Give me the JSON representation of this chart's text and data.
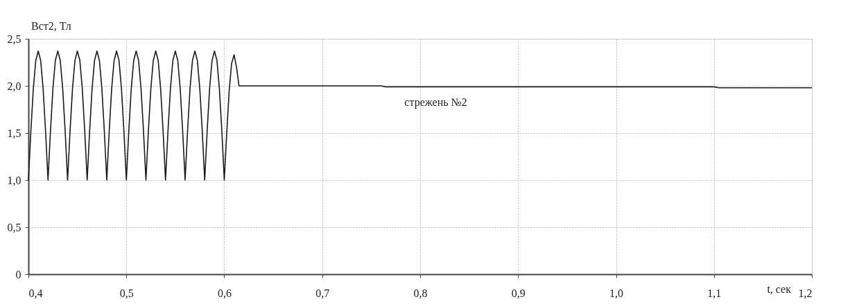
{
  "chart_data": {
    "type": "line",
    "xlabel": "t, сек",
    "ylabel": "Bст2, Тл",
    "annotations": [
      "стрежень №2"
    ],
    "xlim": [
      0.4,
      1.2
    ],
    "xticks": [
      {
        "value": 0.4,
        "label": "0,4"
      },
      {
        "value": 0.5,
        "label": "0,5"
      },
      {
        "value": 0.6,
        "label": "0,6"
      },
      {
        "value": 0.7,
        "label": "0,7"
      },
      {
        "value": 0.8,
        "label": "0,8"
      },
      {
        "value": 0.9,
        "label": "0,9"
      },
      {
        "value": 1.0,
        "label": "1,0"
      },
      {
        "value": 1.1,
        "label": "1,1"
      },
      {
        "value": 1.2,
        "label": "1,2"
      }
    ],
    "ylim": [
      0,
      2.5
    ],
    "yticks": [
      0,
      {
        "value": 0.5,
        "label": "0,5"
      },
      {
        "value": 1.0,
        "label": "1,0"
      },
      {
        "value": 1.5,
        "label": "1,5"
      },
      {
        "value": 2.0,
        "label": "2,0"
      },
      {
        "value": 2.5,
        "label": "2,5"
      }
    ],
    "grid": true,
    "marker": "none",
    "line_style": "solid",
    "series": [
      {
        "color": "#1a1a1a",
        "x": [
          0.4,
          0.4025,
          0.405,
          0.4075,
          0.41,
          0.4125,
          0.415,
          0.4175,
          0.42,
          0.4225,
          0.425,
          0.4275,
          0.43,
          0.4325,
          0.435,
          0.4375,
          0.44,
          0.4425,
          0.445,
          0.4475,
          0.45,
          0.4525,
          0.455,
          0.4575,
          0.46,
          0.4625,
          0.465,
          0.4675,
          0.47,
          0.4725,
          0.475,
          0.4775,
          0.48,
          0.4825,
          0.485,
          0.4875,
          0.49,
          0.4925,
          0.495,
          0.4975,
          0.5,
          0.5025,
          0.505,
          0.5075,
          0.51,
          0.5125,
          0.515,
          0.5175,
          0.52,
          0.5225,
          0.525,
          0.5275,
          0.53,
          0.5325,
          0.535,
          0.5375,
          0.54,
          0.5425,
          0.545,
          0.5475,
          0.55,
          0.5525,
          0.555,
          0.5575,
          0.56,
          0.5625,
          0.565,
          0.5675,
          0.57,
          0.5725,
          0.575,
          0.5775,
          0.58,
          0.5825,
          0.585,
          0.5875,
          0.59,
          0.5925,
          0.595,
          0.5975,
          0.6,
          0.6025,
          0.605,
          0.6075,
          0.61,
          0.6125,
          0.615,
          0.76,
          0.765,
          1.1,
          1.105,
          1.2
        ],
        "values": [
          1.0,
          1.52,
          1.97,
          2.27,
          2.37,
          2.27,
          1.97,
          1.52,
          1.0,
          1.52,
          1.97,
          2.27,
          2.37,
          2.27,
          1.97,
          1.52,
          1.0,
          1.52,
          1.97,
          2.27,
          2.37,
          2.27,
          1.97,
          1.52,
          1.0,
          1.52,
          1.97,
          2.27,
          2.37,
          2.27,
          1.97,
          1.52,
          1.0,
          1.52,
          1.97,
          2.27,
          2.37,
          2.27,
          1.97,
          1.52,
          1.0,
          1.52,
          1.97,
          2.27,
          2.37,
          2.27,
          1.97,
          1.52,
          1.0,
          1.52,
          1.97,
          2.27,
          2.37,
          2.27,
          1.97,
          1.52,
          1.0,
          1.52,
          1.97,
          2.27,
          2.37,
          2.27,
          1.97,
          1.52,
          1.0,
          1.52,
          1.97,
          2.27,
          2.37,
          2.27,
          1.97,
          1.52,
          1.0,
          1.52,
          1.97,
          2.27,
          2.37,
          2.27,
          1.97,
          1.52,
          1.0,
          1.5,
          1.95,
          2.24,
          2.33,
          2.2,
          2.0,
          2.0,
          1.99,
          1.99,
          1.98,
          1.98
        ]
      }
    ]
  }
}
